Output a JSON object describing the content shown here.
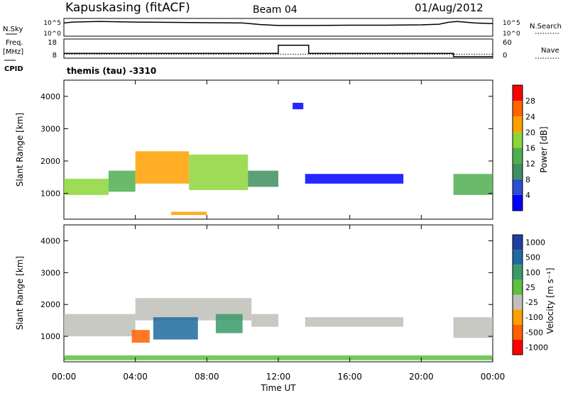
{
  "header": {
    "station": "Kapuskasing (fitACF)",
    "beam": "Beam 04",
    "date": "01/Aug/2012"
  },
  "side_labels": {
    "nsky": "N.Sky",
    "freq_line1": "Freq.",
    "freq_line2": "[MHz]",
    "cpid": "CPID",
    "nsearch": "N.Search",
    "nave": "Nave"
  },
  "cpid_text": "themis (tau)  -3310",
  "chart_data": [
    {
      "type": "line",
      "panel": "noise",
      "left_axis": {
        "ticks": [
          "10^5",
          "10^0"
        ]
      },
      "right_axis": {
        "ticks": [
          "10^5",
          "10^0"
        ]
      },
      "series": [
        {
          "name": "N.Sky",
          "style": "solid",
          "x": [
            0,
            0.5,
            2,
            4,
            6,
            8,
            10,
            11,
            12,
            14,
            16,
            18,
            20,
            21,
            21.5,
            22,
            23,
            24
          ],
          "y": [
            4,
            4.3,
            4.5,
            4.3,
            4.2,
            4.1,
            4.0,
            3.5,
            3.2,
            3.2,
            3.3,
            3.3,
            3.4,
            3.6,
            4.2,
            4.5,
            4.0,
            3.8
          ]
        }
      ]
    },
    {
      "type": "line",
      "panel": "frequency",
      "left_axis": {
        "ticks": [
          "18",
          "8"
        ]
      },
      "right_axis": {
        "ticks": [
          "60",
          "0"
        ]
      },
      "series": [
        {
          "name": "Freq.",
          "style": "solid",
          "x": [
            0,
            12,
            12,
            13.7,
            13.7,
            21.8,
            21.8,
            24
          ],
          "y": [
            10.5,
            10.5,
            15.5,
            15.5,
            10.5,
            10.5,
            8.5,
            8.5
          ]
        },
        {
          "name": "Nave",
          "style": "dotted",
          "x": [
            0,
            24
          ],
          "y": [
            10,
            10
          ]
        }
      ]
    },
    {
      "type": "heatmap",
      "panel": "power",
      "ylabel": "Slant Range [km]",
      "y_ticks": [
        "1000",
        "2000",
        "3000",
        "4000"
      ],
      "colorbar_label": "Power [dB]",
      "colorbar_ticks": [
        "4",
        "8",
        "12",
        "16",
        "20",
        "24",
        "28"
      ],
      "colors": [
        "#0000ff",
        "#2a4fd0",
        "#3f8f60",
        "#4fae50",
        "#8dd63a",
        "#ffa000",
        "#ff6400",
        "#ff0000"
      ],
      "bands": [
        {
          "t0": 0.0,
          "t1": 2.5,
          "r0": 950,
          "r1": 1450,
          "level": 4
        },
        {
          "t0": 2.5,
          "t1": 4.0,
          "r0": 1050,
          "r1": 1700,
          "level": 3
        },
        {
          "t0": 4.0,
          "t1": 7.0,
          "r0": 1300,
          "r1": 2300,
          "level": 5
        },
        {
          "t0": 7.0,
          "t1": 10.3,
          "r0": 1100,
          "r1": 2200,
          "level": 4
        },
        {
          "t0": 10.3,
          "t1": 12.0,
          "r0": 1200,
          "r1": 1700,
          "level": 2
        },
        {
          "t0": 13.5,
          "t1": 19.0,
          "r0": 1300,
          "r1": 1600,
          "level": 0
        },
        {
          "t0": 21.8,
          "t1": 24.0,
          "r0": 950,
          "r1": 1600,
          "level": 3
        },
        {
          "t0": 6.0,
          "t1": 8.0,
          "r0": 330,
          "r1": 430,
          "level": 5
        },
        {
          "t0": 12.8,
          "t1": 13.4,
          "r0": 3600,
          "r1": 3800,
          "level": 0
        }
      ]
    },
    {
      "type": "heatmap",
      "panel": "velocity",
      "ylabel": "Slant Range [km]",
      "xlabel": "Time UT",
      "x_ticks": [
        "00:00",
        "04:00",
        "08:00",
        "12:00",
        "16:00",
        "20:00",
        "00:00"
      ],
      "y_ticks": [
        "1000",
        "2000",
        "3000",
        "4000"
      ],
      "colorbar_label": "Velocity [m s⁻¹]",
      "colorbar_ticks": [
        "1000",
        "500",
        "100",
        "25",
        "-25",
        "-100",
        "-500",
        "-1000"
      ],
      "colors": [
        "#1f3fa0",
        "#1f6aa0",
        "#3a9a6a",
        "#5cc040",
        "#c0c0b8",
        "#ffa000",
        "#ff6000",
        "#ff0000"
      ],
      "bands": [
        {
          "t0": 0.0,
          "t1": 4.0,
          "r0": 1000,
          "r1": 1700,
          "level": 4
        },
        {
          "t0": 4.0,
          "t1": 10.5,
          "r0": 1500,
          "r1": 2200,
          "level": 4
        },
        {
          "t0": 5.0,
          "t1": 7.5,
          "r0": 900,
          "r1": 1600,
          "level": 1
        },
        {
          "t0": 8.5,
          "t1": 10.0,
          "r0": 1100,
          "r1": 1700,
          "level": 2
        },
        {
          "t0": 3.8,
          "t1": 4.8,
          "r0": 800,
          "r1": 1200,
          "level": 6
        },
        {
          "t0": 10.5,
          "t1": 12.0,
          "r0": 1300,
          "r1": 1700,
          "level": 4
        },
        {
          "t0": 13.5,
          "t1": 19.0,
          "r0": 1300,
          "r1": 1600,
          "level": 4
        },
        {
          "t0": 21.8,
          "t1": 24.0,
          "r0": 950,
          "r1": 1600,
          "level": 4
        },
        {
          "t0": 0.0,
          "t1": 24.0,
          "r0": 250,
          "r1": 400,
          "level": 3
        }
      ]
    }
  ]
}
